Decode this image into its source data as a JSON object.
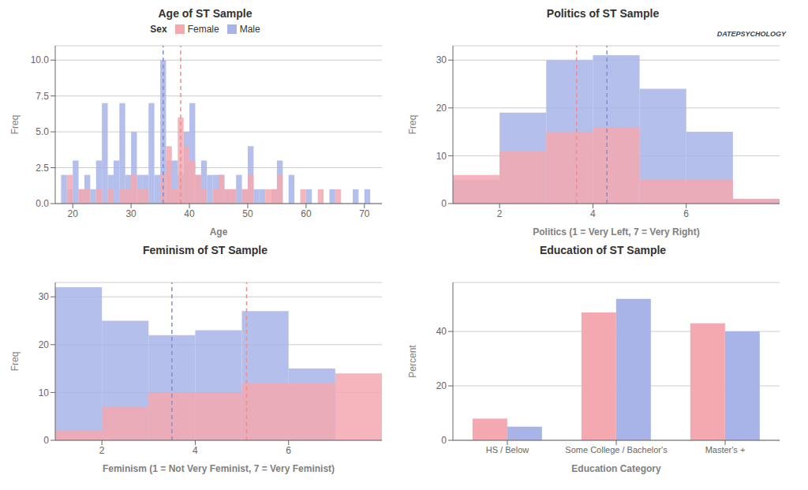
{
  "chart_data": [
    {
      "type": "histogram",
      "title": "Age of ST Sample",
      "x_label": "Age",
      "y_label": "Freq",
      "bins": [
        18,
        19,
        20,
        21,
        22,
        23,
        24,
        25,
        26,
        27,
        28,
        29,
        30,
        31,
        32,
        33,
        34,
        35,
        36,
        37,
        38,
        39,
        40,
        41,
        42,
        43,
        44,
        45,
        46,
        47,
        48,
        49,
        50,
        51,
        52,
        53,
        54,
        55,
        56,
        57,
        58,
        59,
        60,
        61,
        62,
        63,
        64,
        65,
        66,
        67,
        68,
        69,
        70,
        71
      ],
      "series": [
        {
          "name": "Female",
          "color": "#f4a8b0",
          "values": [
            0,
            2,
            0,
            1,
            1,
            0,
            1,
            0,
            1,
            0,
            1,
            1,
            2,
            1,
            1,
            0,
            0,
            2,
            4,
            1,
            6,
            4,
            3,
            2,
            1,
            0,
            1,
            2,
            1,
            1,
            0,
            1,
            2,
            0,
            0,
            1,
            1,
            2,
            0,
            0,
            0,
            1,
            0,
            0,
            1,
            0,
            0,
            1,
            0,
            0,
            0,
            0,
            0
          ]
        },
        {
          "name": "Male",
          "color": "#a8b4e8",
          "values": [
            2,
            1,
            3,
            1,
            2,
            1,
            3,
            7,
            2,
            3,
            7,
            2,
            5,
            2,
            2,
            7,
            2,
            10,
            3,
            3,
            2,
            5,
            7,
            2,
            3,
            2,
            2,
            2,
            1,
            1,
            2,
            1,
            4,
            1,
            1,
            0,
            1,
            3,
            0,
            2,
            0,
            0,
            1,
            0,
            0,
            0,
            1,
            0,
            0,
            0,
            1,
            0,
            1
          ]
        }
      ],
      "vlines": [
        {
          "x": 35.5,
          "color": "#8090d0",
          "line_style": "dashed"
        },
        {
          "x": 38.5,
          "color": "#e89090",
          "line_style": "dashed"
        }
      ],
      "xlim": [
        17,
        73
      ],
      "ylim": [
        0,
        11
      ],
      "xticks": [
        20,
        30,
        40,
        50,
        60,
        70
      ],
      "yticks": [
        {
          "value": 0,
          "label": "0.0"
        },
        2.5,
        {
          "value": 5,
          "label": "5.0"
        },
        7.5,
        {
          "value": 10,
          "label": "10.0"
        }
      ],
      "grid": true,
      "legend": "top",
      "legend_title": "Sex"
    },
    {
      "type": "histogram",
      "title": "Politics of ST Sample",
      "x_label": "Politics (1 = Very Left, 7 = Very Right)",
      "y_label": "Freq",
      "bins": [
        1,
        2,
        3,
        4,
        5,
        6,
        7,
        8
      ],
      "series": [
        {
          "name": "Female",
          "color": "#f4a8b0",
          "values": [
            6,
            11,
            15,
            16,
            5,
            5,
            1
          ]
        },
        {
          "name": "Male",
          "color": "#a8b4e8",
          "values": [
            5,
            19,
            30,
            31,
            24,
            15,
            1
          ]
        }
      ],
      "vlines": [
        {
          "x": 4.3,
          "color": "#8090d0",
          "line_style": "dashed"
        },
        {
          "x": 3.65,
          "color": "#e89090",
          "line_style": "dashed"
        }
      ],
      "xlim": [
        1,
        8
      ],
      "ylim": [
        0,
        33
      ],
      "xticks": [
        2,
        4,
        6
      ],
      "yticks": [
        0,
        10,
        20,
        30
      ],
      "grid": true,
      "annotation": "DATEPSYCHOLOGY"
    },
    {
      "type": "histogram",
      "title": "Feminism of ST Sample",
      "x_label": "Feminism (1 = Not Very Feminist, 7 = Very Feminist)",
      "y_label": "Freq",
      "bins": [
        1,
        2,
        3,
        4,
        5,
        6,
        7,
        8
      ],
      "series": [
        {
          "name": "Female",
          "color": "#f4a8b0",
          "values": [
            2,
            7,
            10,
            10,
            12,
            12,
            14
          ]
        },
        {
          "name": "Male",
          "color": "#a8b4e8",
          "values": [
            32,
            25,
            22,
            23,
            27,
            15,
            0
          ]
        }
      ],
      "vlines": [
        {
          "x": 3.5,
          "color": "#8090d0",
          "line_style": "dashed"
        },
        {
          "x": 5.1,
          "color": "#e89090",
          "line_style": "dashed"
        }
      ],
      "xlim": [
        1,
        8
      ],
      "ylim": [
        0,
        33
      ],
      "xticks": [
        2,
        4,
        6
      ],
      "yticks": [
        0,
        10,
        20,
        30
      ],
      "grid": true
    },
    {
      "type": "bar",
      "title": "Education of ST Sample",
      "x_label": "Education Category",
      "y_label": "Percent",
      "categories": [
        "HS / Below",
        "Some College / Bachelor's",
        "Master's +"
      ],
      "series": [
        {
          "name": "Female",
          "color": "#f4a8b0",
          "values": [
            8,
            47,
            43
          ]
        },
        {
          "name": "Male",
          "color": "#a8b4e8",
          "values": [
            5,
            52,
            40
          ]
        }
      ],
      "ylim": [
        0,
        58
      ],
      "yticks": [
        0,
        20,
        40
      ],
      "grid": true
    }
  ]
}
